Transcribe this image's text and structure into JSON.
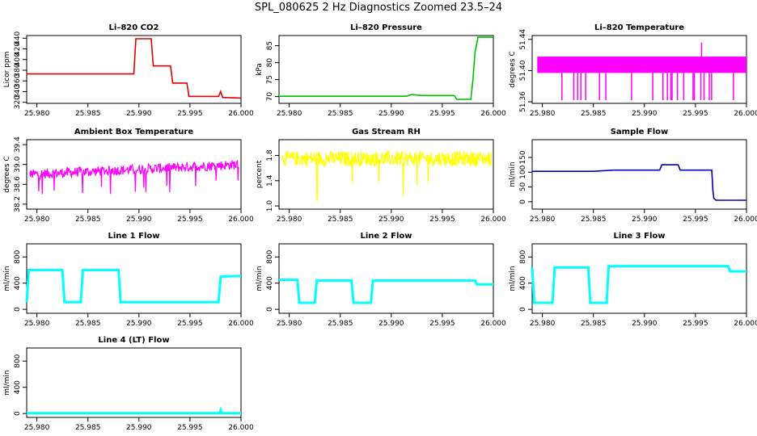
{
  "page": {
    "title": "SPL_080625  2 Hz Diagnostics Zoomed 23.5–24"
  },
  "chart_data": [
    {
      "type": "line",
      "title": "Li–820 CO2",
      "ylabel": "Licor ppm",
      "xlim": [
        25.979,
        26.0
      ],
      "ylim": [
        318,
        445
      ],
      "xticks": [
        "25.980",
        "25.985",
        "25.990",
        "25.995",
        "26.000"
      ],
      "yticks": [
        "320",
        "340",
        "360",
        "380",
        "400",
        "420",
        "440"
      ],
      "color": "#e00000",
      "series": [
        {
          "x": [
            25.979,
            25.9895,
            25.9897,
            25.9912,
            25.9914,
            25.9931,
            25.9933,
            25.9947,
            25.9949,
            25.9978,
            25.998,
            25.9982,
            26.0
          ],
          "y": [
            373,
            373,
            439,
            439,
            388,
            388,
            356,
            356,
            331,
            331,
            340,
            329,
            328
          ]
        }
      ]
    },
    {
      "type": "line",
      "title": "Li–820 Pressure",
      "ylabel": "kPa",
      "xlim": [
        25.979,
        26.0
      ],
      "ylim": [
        68,
        88
      ],
      "xticks": [
        "25.980",
        "25.985",
        "25.990",
        "25.995",
        "26.000"
      ],
      "yticks": [
        "70",
        "75",
        "80",
        "85"
      ],
      "color": "#00c000",
      "series": [
        {
          "x": [
            25.979,
            25.9915,
            25.992,
            25.993,
            25.9962,
            25.9964,
            25.9978,
            25.998,
            25.9982,
            25.9985,
            26.0
          ],
          "y": [
            70.1,
            70.1,
            70.6,
            70.3,
            70.3,
            69.2,
            69.2,
            75,
            83,
            87.5,
            87.5
          ]
        }
      ]
    },
    {
      "type": "line",
      "title": "Li–820 Temperature",
      "ylabel": "degrees C",
      "xlim": [
        25.979,
        26.0
      ],
      "ylim": [
        51.358,
        51.445
      ],
      "xticks": [
        "25.980",
        "25.985",
        "25.990",
        "25.995",
        "26.000"
      ],
      "yticks": [
        "51.36",
        "51.40",
        "51.44"
      ],
      "color": "#ff00ff",
      "series": [
        {
          "band": [
            51.397,
            51.418
          ],
          "spikes_down_to": 51.362,
          "spike_up": [
            25.9956,
            51.436
          ]
        }
      ]
    },
    {
      "type": "line",
      "title": "Ambient Box Temperature",
      "ylabel": "degrees C",
      "xlim": [
        25.979,
        26.0
      ],
      "ylim": [
        38.1,
        39.5
      ],
      "xticks": [
        "25.980",
        "25.985",
        "25.990",
        "25.995",
        "26.000"
      ],
      "yticks": [
        "38.2",
        "38.6",
        "39.0",
        "39.4"
      ],
      "color": "#ff00ff",
      "series": [
        {
          "trend_x": [
            25.979,
            26.0
          ],
          "trend_y": [
            38.8,
            39.0
          ],
          "noise": 0.1
        }
      ]
    },
    {
      "type": "line",
      "title": "Gas Stream RH",
      "ylabel": "percent",
      "xlim": [
        25.979,
        26.0
      ],
      "ylim": [
        0.95,
        2.05
      ],
      "xticks": [
        "25.980",
        "25.985",
        "25.990",
        "25.995",
        "26.000"
      ],
      "yticks": [
        "1.0",
        "1.4",
        "1.8"
      ],
      "color": "#ffff00",
      "series": [
        {
          "center": 1.75,
          "noise": 0.1
        }
      ]
    },
    {
      "type": "line",
      "title": "Sample Flow",
      "ylabel": "ml/min",
      "xlim": [
        25.979,
        26.0
      ],
      "ylim": [
        -25,
        210
      ],
      "xticks": [
        "25.980",
        "25.985",
        "25.990",
        "25.995",
        "26.000"
      ],
      "yticks": [
        "0",
        "50",
        "100",
        "150"
      ],
      "color": "#0000c0",
      "series": [
        {
          "x": [
            25.979,
            25.985,
            25.987,
            25.9915,
            25.9917,
            25.9933,
            25.9935,
            25.9966,
            25.9967,
            25.9968,
            25.997,
            26.0
          ],
          "y": [
            103,
            103,
            107,
            107,
            125,
            125,
            107,
            107,
            40,
            12,
            5,
            5
          ]
        }
      ]
    },
    {
      "type": "line",
      "title": "Line 1 Flow",
      "ylabel": "ml/min",
      "xlim": [
        25.979,
        26.0
      ],
      "ylim": [
        -60,
        1000
      ],
      "xticks": [
        "25.980",
        "25.985",
        "25.990",
        "25.995",
        "26.000"
      ],
      "yticks": [
        "0",
        "400",
        "800"
      ],
      "color": "#00ffff",
      "series": [
        {
          "x": [
            25.979,
            25.9792,
            25.9825,
            25.9827,
            25.9843,
            25.9845,
            25.988,
            25.9882,
            25.9978,
            25.998,
            26.0
          ],
          "y": [
            110,
            600,
            600,
            110,
            110,
            600,
            600,
            110,
            110,
            500,
            510
          ]
        }
      ]
    },
    {
      "type": "line",
      "title": "Line 2 Flow",
      "ylabel": "ml/min",
      "xlim": [
        25.979,
        26.0
      ],
      "ylim": [
        -60,
        1000
      ],
      "xticks": [
        "25.980",
        "25.985",
        "25.990",
        "25.995",
        "26.000"
      ],
      "yticks": [
        "0",
        "400",
        "800"
      ],
      "color": "#00ffff",
      "series": [
        {
          "x": [
            25.979,
            25.9808,
            25.981,
            25.9825,
            25.9827,
            25.9861,
            25.9863,
            25.988,
            25.9882,
            25.9982,
            25.9984,
            26.0
          ],
          "y": [
            450,
            450,
            100,
            100,
            440,
            440,
            100,
            100,
            440,
            440,
            380,
            380
          ]
        }
      ]
    },
    {
      "type": "line",
      "title": "Line 3 Flow",
      "ylabel": "ml/min",
      "xlim": [
        25.979,
        26.0
      ],
      "ylim": [
        -60,
        1000
      ],
      "xticks": [
        "25.980",
        "25.985",
        "25.990",
        "25.995",
        "26.000"
      ],
      "yticks": [
        "0",
        "400",
        "800"
      ],
      "color": "#00ffff",
      "series": [
        {
          "x": [
            25.979,
            25.9792,
            25.981,
            25.9812,
            25.9845,
            25.9847,
            25.9863,
            25.9865,
            25.9982,
            25.9984,
            26.0
          ],
          "y": [
            640,
            100,
            100,
            640,
            640,
            100,
            100,
            660,
            660,
            580,
            580
          ]
        }
      ]
    },
    {
      "type": "line",
      "title": "Line 4 (LT) Flow",
      "ylabel": "ml/min",
      "xlim": [
        25.979,
        26.0
      ],
      "ylim": [
        -60,
        1000
      ],
      "xticks": [
        "25.980",
        "25.985",
        "25.990",
        "25.995",
        "26.000"
      ],
      "yticks": [
        "0",
        "400",
        "800"
      ],
      "color": "#00ffff",
      "series": [
        {
          "x": [
            25.979,
            25.9979,
            25.998,
            25.9981,
            26.0
          ],
          "y": [
            5,
            5,
            50,
            5,
            5
          ]
        }
      ]
    }
  ]
}
